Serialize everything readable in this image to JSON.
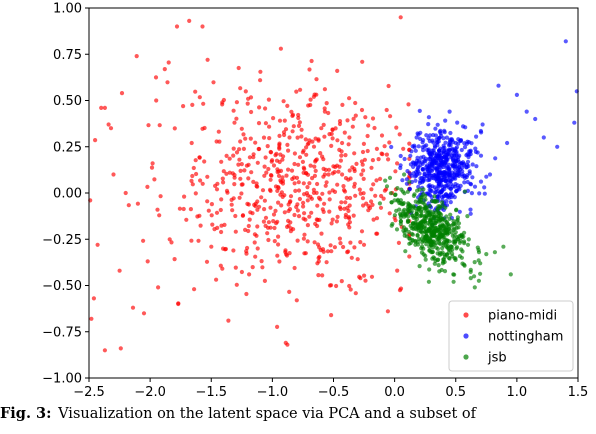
{
  "chart_data": {
    "type": "scatter",
    "xlim": [
      -2.5,
      1.5
    ],
    "ylim": [
      -1.0,
      1.0
    ],
    "x_ticks": [
      {
        "value": -2.5,
        "label": "−2.5"
      },
      {
        "value": -2.0,
        "label": "−2.0"
      },
      {
        "value": -1.5,
        "label": "−1.5"
      },
      {
        "value": -1.0,
        "label": "−1.0"
      },
      {
        "value": -0.5,
        "label": "−0.5"
      },
      {
        "value": 0.0,
        "label": "0.0"
      },
      {
        "value": 0.5,
        "label": "0.5"
      },
      {
        "value": 1.0,
        "label": "1.0"
      },
      {
        "value": 1.5,
        "label": "1.5"
      }
    ],
    "y_ticks": [
      {
        "value": -1.0,
        "label": "−1.00"
      },
      {
        "value": -0.75,
        "label": "−0.75"
      },
      {
        "value": -0.5,
        "label": "−0.50"
      },
      {
        "value": -0.25,
        "label": "−0.25"
      },
      {
        "value": 0.0,
        "label": "0.00"
      },
      {
        "value": 0.25,
        "label": "0.25"
      },
      {
        "value": 0.5,
        "label": "0.50"
      },
      {
        "value": 0.75,
        "label": "0.75"
      },
      {
        "value": 1.0,
        "label": "1.00"
      }
    ],
    "grid": false,
    "legend_position": "lower-right",
    "series": [
      {
        "name": "piano-midi",
        "color": "#ff0000",
        "points": [
          [
            -2.49,
            -0.04
          ],
          [
            -2.4,
            0.46
          ],
          [
            -2.37,
            0.46
          ],
          [
            -2.34,
            0.37
          ],
          [
            -2.43,
            -0.28
          ],
          [
            -2.46,
            -0.57
          ],
          [
            -2.48,
            -0.68
          ],
          [
            -2.37,
            -0.85
          ],
          [
            -2.24,
            -0.84
          ],
          [
            -2.3,
            0.1
          ],
          [
            -2.32,
            0.35
          ],
          [
            -2.23,
            0.54
          ],
          [
            -2.11,
            0.74
          ],
          [
            -2.2,
            0.0
          ],
          [
            -2.25,
            -0.42
          ],
          [
            -2.14,
            -0.62
          ],
          [
            -2.05,
            -0.65
          ],
          [
            -1.98,
            0.16
          ],
          [
            -1.94,
            -0.09
          ],
          [
            -2.02,
            -0.37
          ],
          [
            -1.78,
            0.9
          ],
          [
            -1.88,
            0.67
          ],
          [
            -1.73,
            0.47
          ],
          [
            -1.66,
            0.27
          ],
          [
            -1.84,
            -0.25
          ],
          [
            -1.77,
            -0.6
          ],
          [
            -1.68,
            0.93
          ],
          [
            -1.53,
            0.72
          ],
          [
            -1.57,
            0.05
          ],
          [
            -1.64,
            -0.52
          ],
          [
            -1.5,
            -0.29
          ],
          [
            -1.41,
            0.49
          ],
          [
            -1.31,
            0.38
          ],
          [
            -1.24,
            -0.12
          ],
          [
            -1.36,
            -0.69
          ],
          [
            -1.27,
            0.18
          ],
          [
            -1.19,
            -0.44
          ],
          [
            -1.1,
            0.61
          ],
          [
            -1.05,
            0.11
          ],
          [
            -0.98,
            -0.26
          ],
          [
            -0.93,
            0.78
          ],
          [
            -0.89,
            -0.81
          ],
          [
            -0.86,
            0.3
          ],
          [
            -0.8,
            -0.58
          ],
          [
            -0.75,
            0.22
          ],
          [
            -0.71,
            -0.04
          ],
          [
            -0.66,
            0.52
          ],
          [
            -0.62,
            -0.37
          ],
          [
            -0.57,
            0.1
          ],
          [
            -0.52,
            -0.66
          ],
          [
            -0.47,
            0.66
          ],
          [
            -0.43,
            0.27
          ],
          [
            -0.38,
            -0.17
          ],
          [
            -0.33,
            0.13
          ],
          [
            -0.28,
            -0.46
          ],
          [
            -0.24,
            0.41
          ],
          [
            -0.19,
            0.02
          ],
          [
            -0.15,
            -0.22
          ],
          [
            -0.1,
            0.21
          ],
          [
            -0.07,
            0.02
          ],
          [
            -0.04,
            -0.11
          ],
          [
            0.02,
            0.16
          ],
          [
            -0.02,
            0.0
          ],
          [
            0.05,
            0.95
          ],
          [
            -1.95,
            0.5
          ],
          [
            -1.45,
            0.05
          ],
          [
            -0.6,
            0.35
          ],
          [
            -1.12,
            -0.3
          ],
          [
            -0.35,
            -0.35
          ]
        ]
      },
      {
        "name": "nottingham",
        "color": "#0000ff",
        "points": [
          [
            0.05,
            0.2
          ],
          [
            0.1,
            0.05
          ],
          [
            0.18,
            0.3
          ],
          [
            0.21,
            0.15
          ],
          [
            0.24,
            -0.04
          ],
          [
            0.28,
            0.41
          ],
          [
            0.31,
            0.23
          ],
          [
            0.34,
            0.09
          ],
          [
            0.37,
            0.33
          ],
          [
            0.4,
            -0.06
          ],
          [
            0.42,
            0.18
          ],
          [
            0.45,
            0.44
          ],
          [
            0.47,
            0.11
          ],
          [
            0.5,
            0.27
          ],
          [
            0.53,
            0.02
          ],
          [
            0.56,
            0.36
          ],
          [
            0.59,
            0.14
          ],
          [
            0.62,
            0.05
          ],
          [
            0.66,
            0.24
          ],
          [
            0.72,
            0.37
          ],
          [
            0.78,
            0.1
          ],
          [
            0.85,
            0.58
          ],
          [
            0.92,
            0.27
          ],
          [
            1.0,
            0.53
          ],
          [
            1.08,
            0.44
          ],
          [
            1.15,
            0.4
          ],
          [
            1.22,
            0.3
          ],
          [
            1.33,
            0.25
          ],
          [
            1.4,
            0.82
          ],
          [
            1.47,
            0.38
          ],
          [
            1.49,
            0.55
          ],
          [
            0.35,
            -0.02
          ],
          [
            0.44,
            0.21
          ],
          [
            0.39,
            0.07
          ]
        ]
      },
      {
        "name": "jsb",
        "color": "#008000",
        "points": [
          [
            0.0,
            -0.04
          ],
          [
            0.05,
            -0.12
          ],
          [
            0.09,
            -0.2
          ],
          [
            0.13,
            -0.08
          ],
          [
            0.17,
            -0.28
          ],
          [
            0.21,
            -0.16
          ],
          [
            0.25,
            -0.34
          ],
          [
            0.29,
            -0.1
          ],
          [
            0.32,
            -0.23
          ],
          [
            0.36,
            -0.39
          ],
          [
            0.4,
            -0.18
          ],
          [
            0.44,
            -0.3
          ],
          [
            0.48,
            -0.44
          ],
          [
            0.52,
            -0.25
          ],
          [
            0.55,
            -0.35
          ],
          [
            0.6,
            -0.28
          ],
          [
            0.65,
            -0.45
          ],
          [
            0.7,
            -0.38
          ],
          [
            0.75,
            -0.33
          ],
          [
            0.82,
            -0.32
          ],
          [
            0.89,
            -0.29
          ],
          [
            0.95,
            -0.44
          ],
          [
            0.28,
            -0.48
          ],
          [
            0.22,
            -0.05
          ],
          [
            0.35,
            -0.25
          ]
        ]
      }
    ]
  },
  "caption": {
    "label": "Fig. 3:",
    "text": "Visualization on the latent space via PCA and a subset of"
  }
}
